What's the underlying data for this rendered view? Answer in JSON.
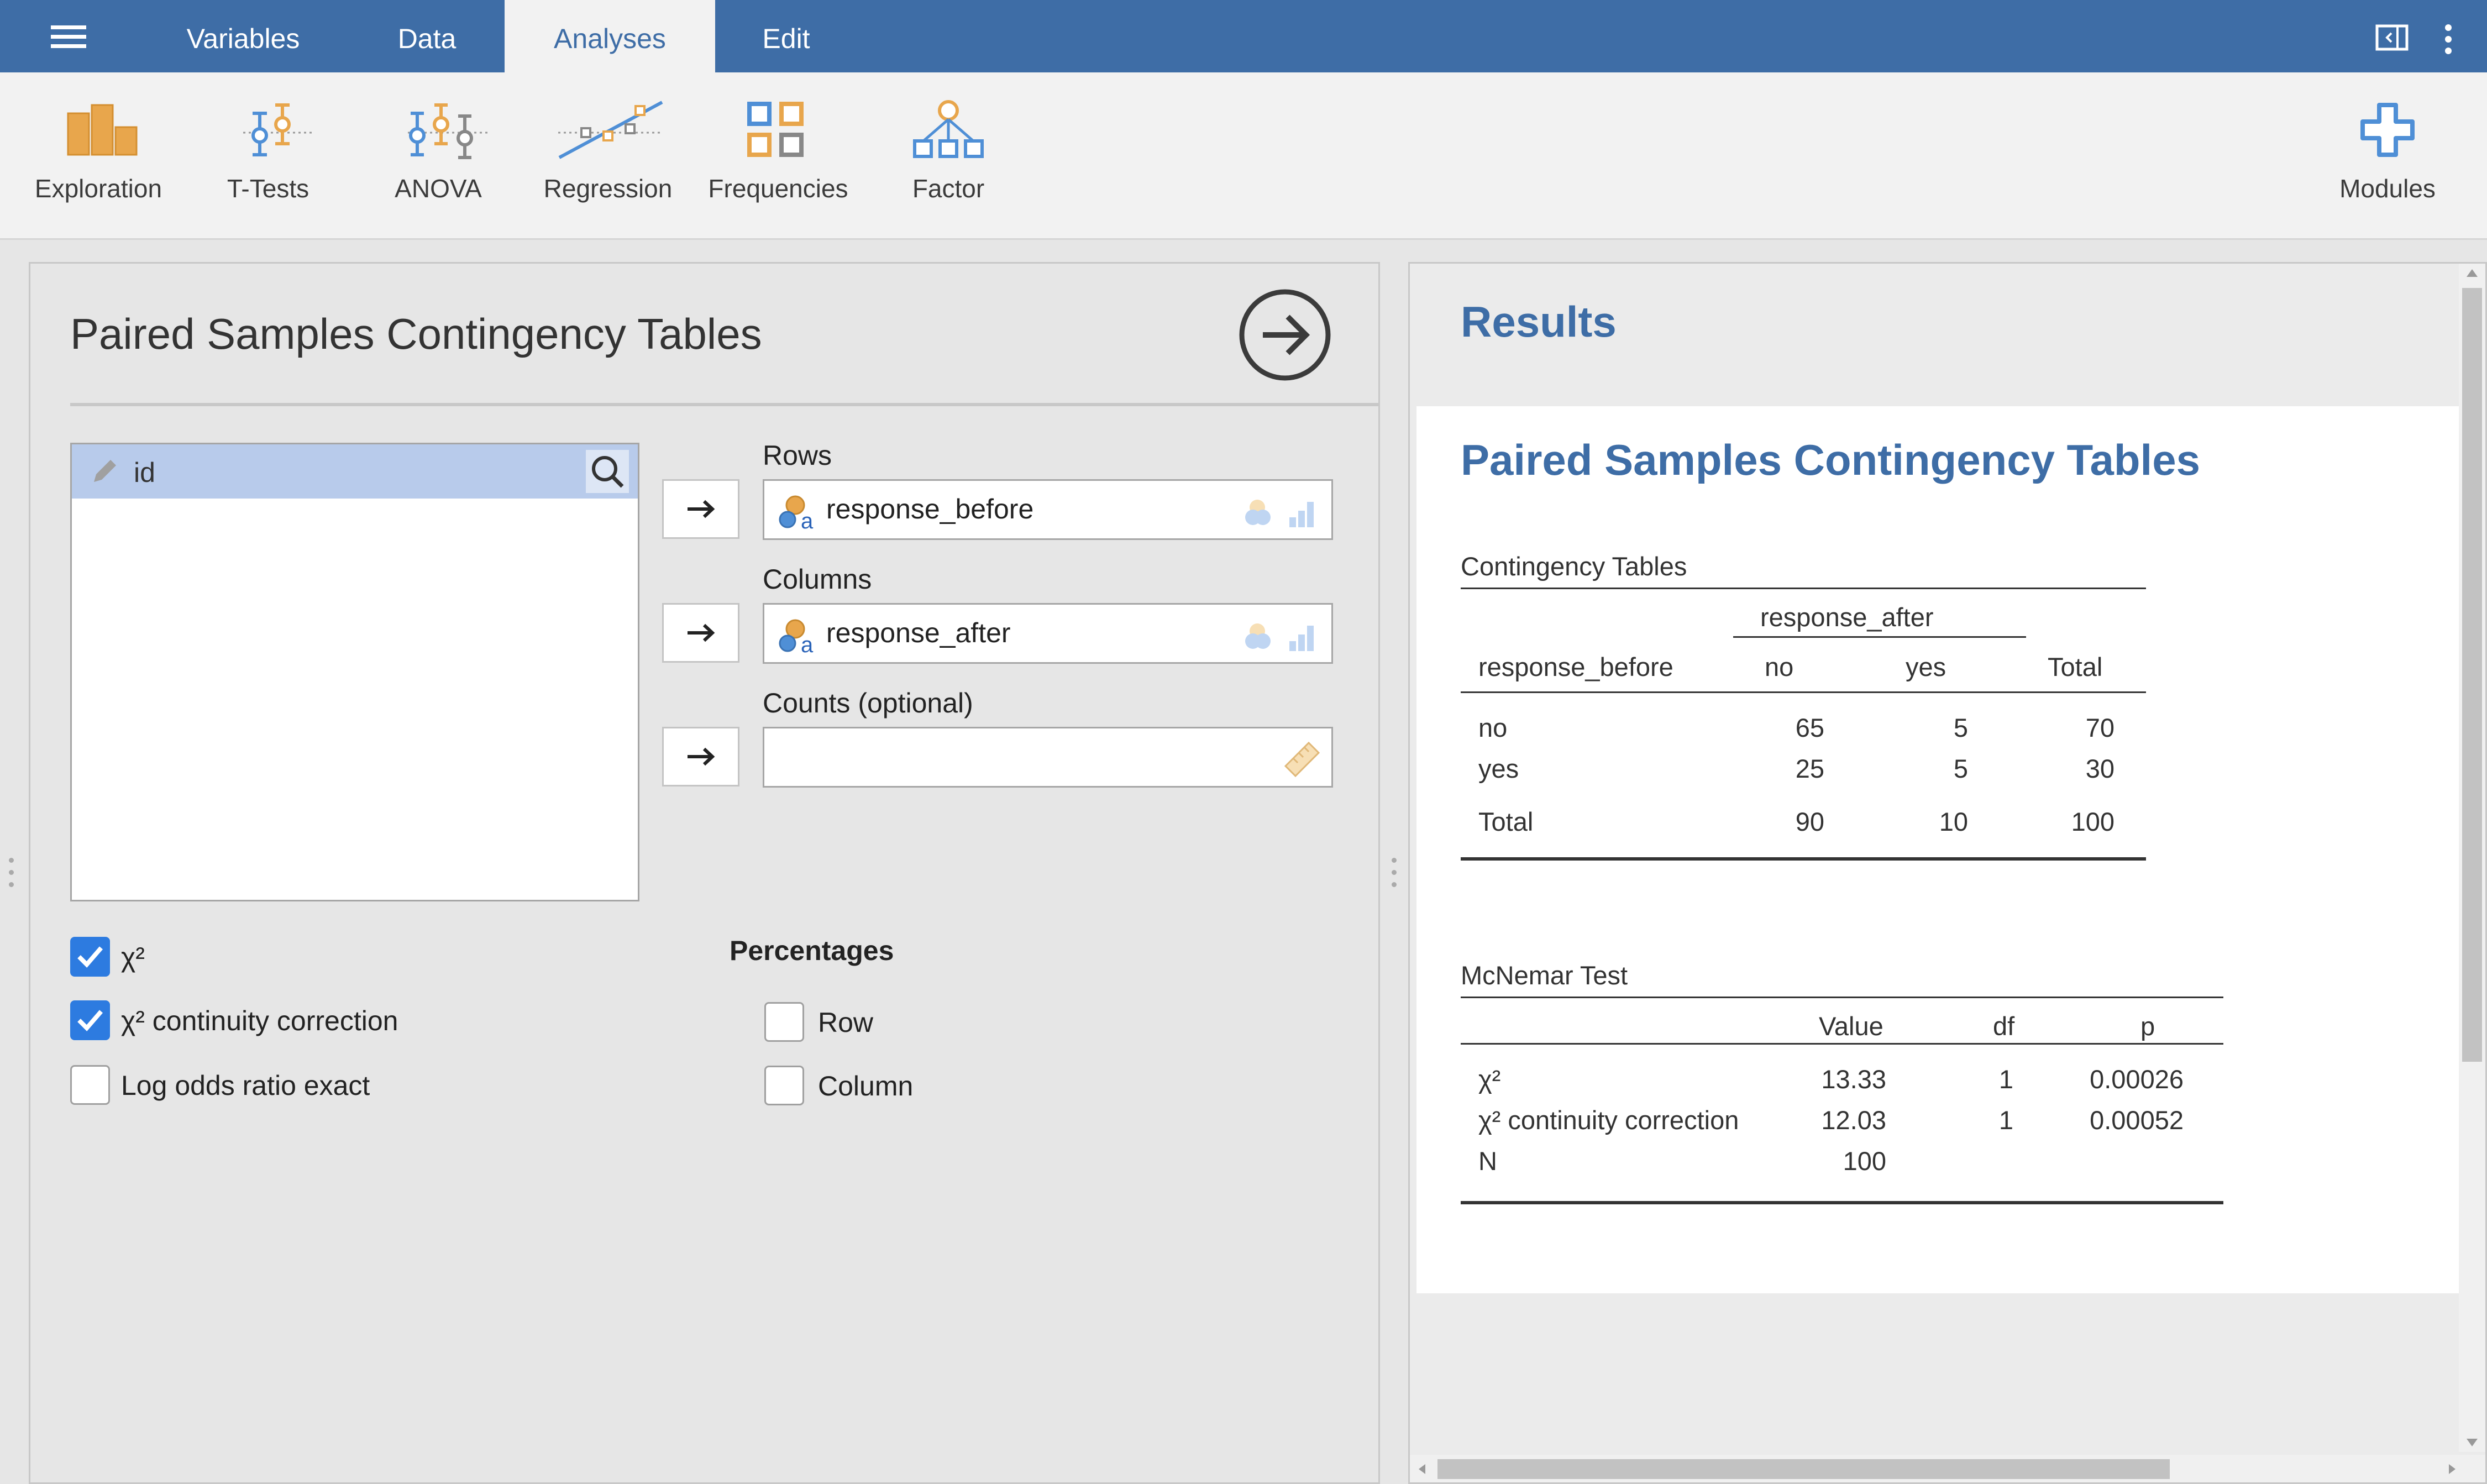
{
  "menu": {
    "tabs": [
      "Variables",
      "Data",
      "Analyses",
      "Edit"
    ],
    "active": "Analyses"
  },
  "ribbon": {
    "items": [
      "Exploration",
      "T-Tests",
      "ANOVA",
      "Regression",
      "Frequencies",
      "Factor"
    ],
    "modules_label": "Modules"
  },
  "colors": {
    "brand": "#3e6da6",
    "accent": "#2d7be0",
    "icon_orange": "#e8a64c",
    "icon_blue": "#4f8fd6"
  },
  "analysis": {
    "title": "Paired Samples Contingency Tables",
    "variables": [
      "id"
    ],
    "rows_label": "Rows",
    "rows_value": "response_before",
    "columns_label": "Columns",
    "columns_value": "response_after",
    "counts_label": "Counts (optional)",
    "counts_value": "",
    "checks": [
      {
        "label": "χ²",
        "checked": true
      },
      {
        "label": "χ² continuity correction",
        "checked": true
      },
      {
        "label": "Log odds ratio exact",
        "checked": false
      }
    ],
    "percentages_title": "Percentages",
    "percentages": [
      {
        "label": "Row",
        "checked": false
      },
      {
        "label": "Column",
        "checked": false
      }
    ]
  },
  "results": {
    "header": "Results",
    "title": "Paired Samples Contingency Tables",
    "contingency": {
      "caption": "Contingency Tables",
      "spanner": "response_after",
      "row_var": "response_before",
      "columns": [
        "no",
        "yes",
        "Total"
      ],
      "rows": [
        {
          "label": "no",
          "values": [
            "65",
            "5",
            "70"
          ]
        },
        {
          "label": "yes",
          "values": [
            "25",
            "5",
            "30"
          ]
        },
        {
          "label": "Total",
          "values": [
            "90",
            "10",
            "100"
          ]
        }
      ]
    },
    "mcnemar": {
      "caption": "McNemar Test",
      "columns": [
        "Value",
        "df",
        "p"
      ],
      "rows": [
        {
          "label": "χ²",
          "values": [
            "13.33",
            "1",
            "0.00026"
          ]
        },
        {
          "label": "χ² continuity correction",
          "values": [
            "12.03",
            "1",
            "0.00052"
          ]
        },
        {
          "label": "N",
          "values": [
            "100",
            "",
            ""
          ]
        }
      ]
    }
  }
}
